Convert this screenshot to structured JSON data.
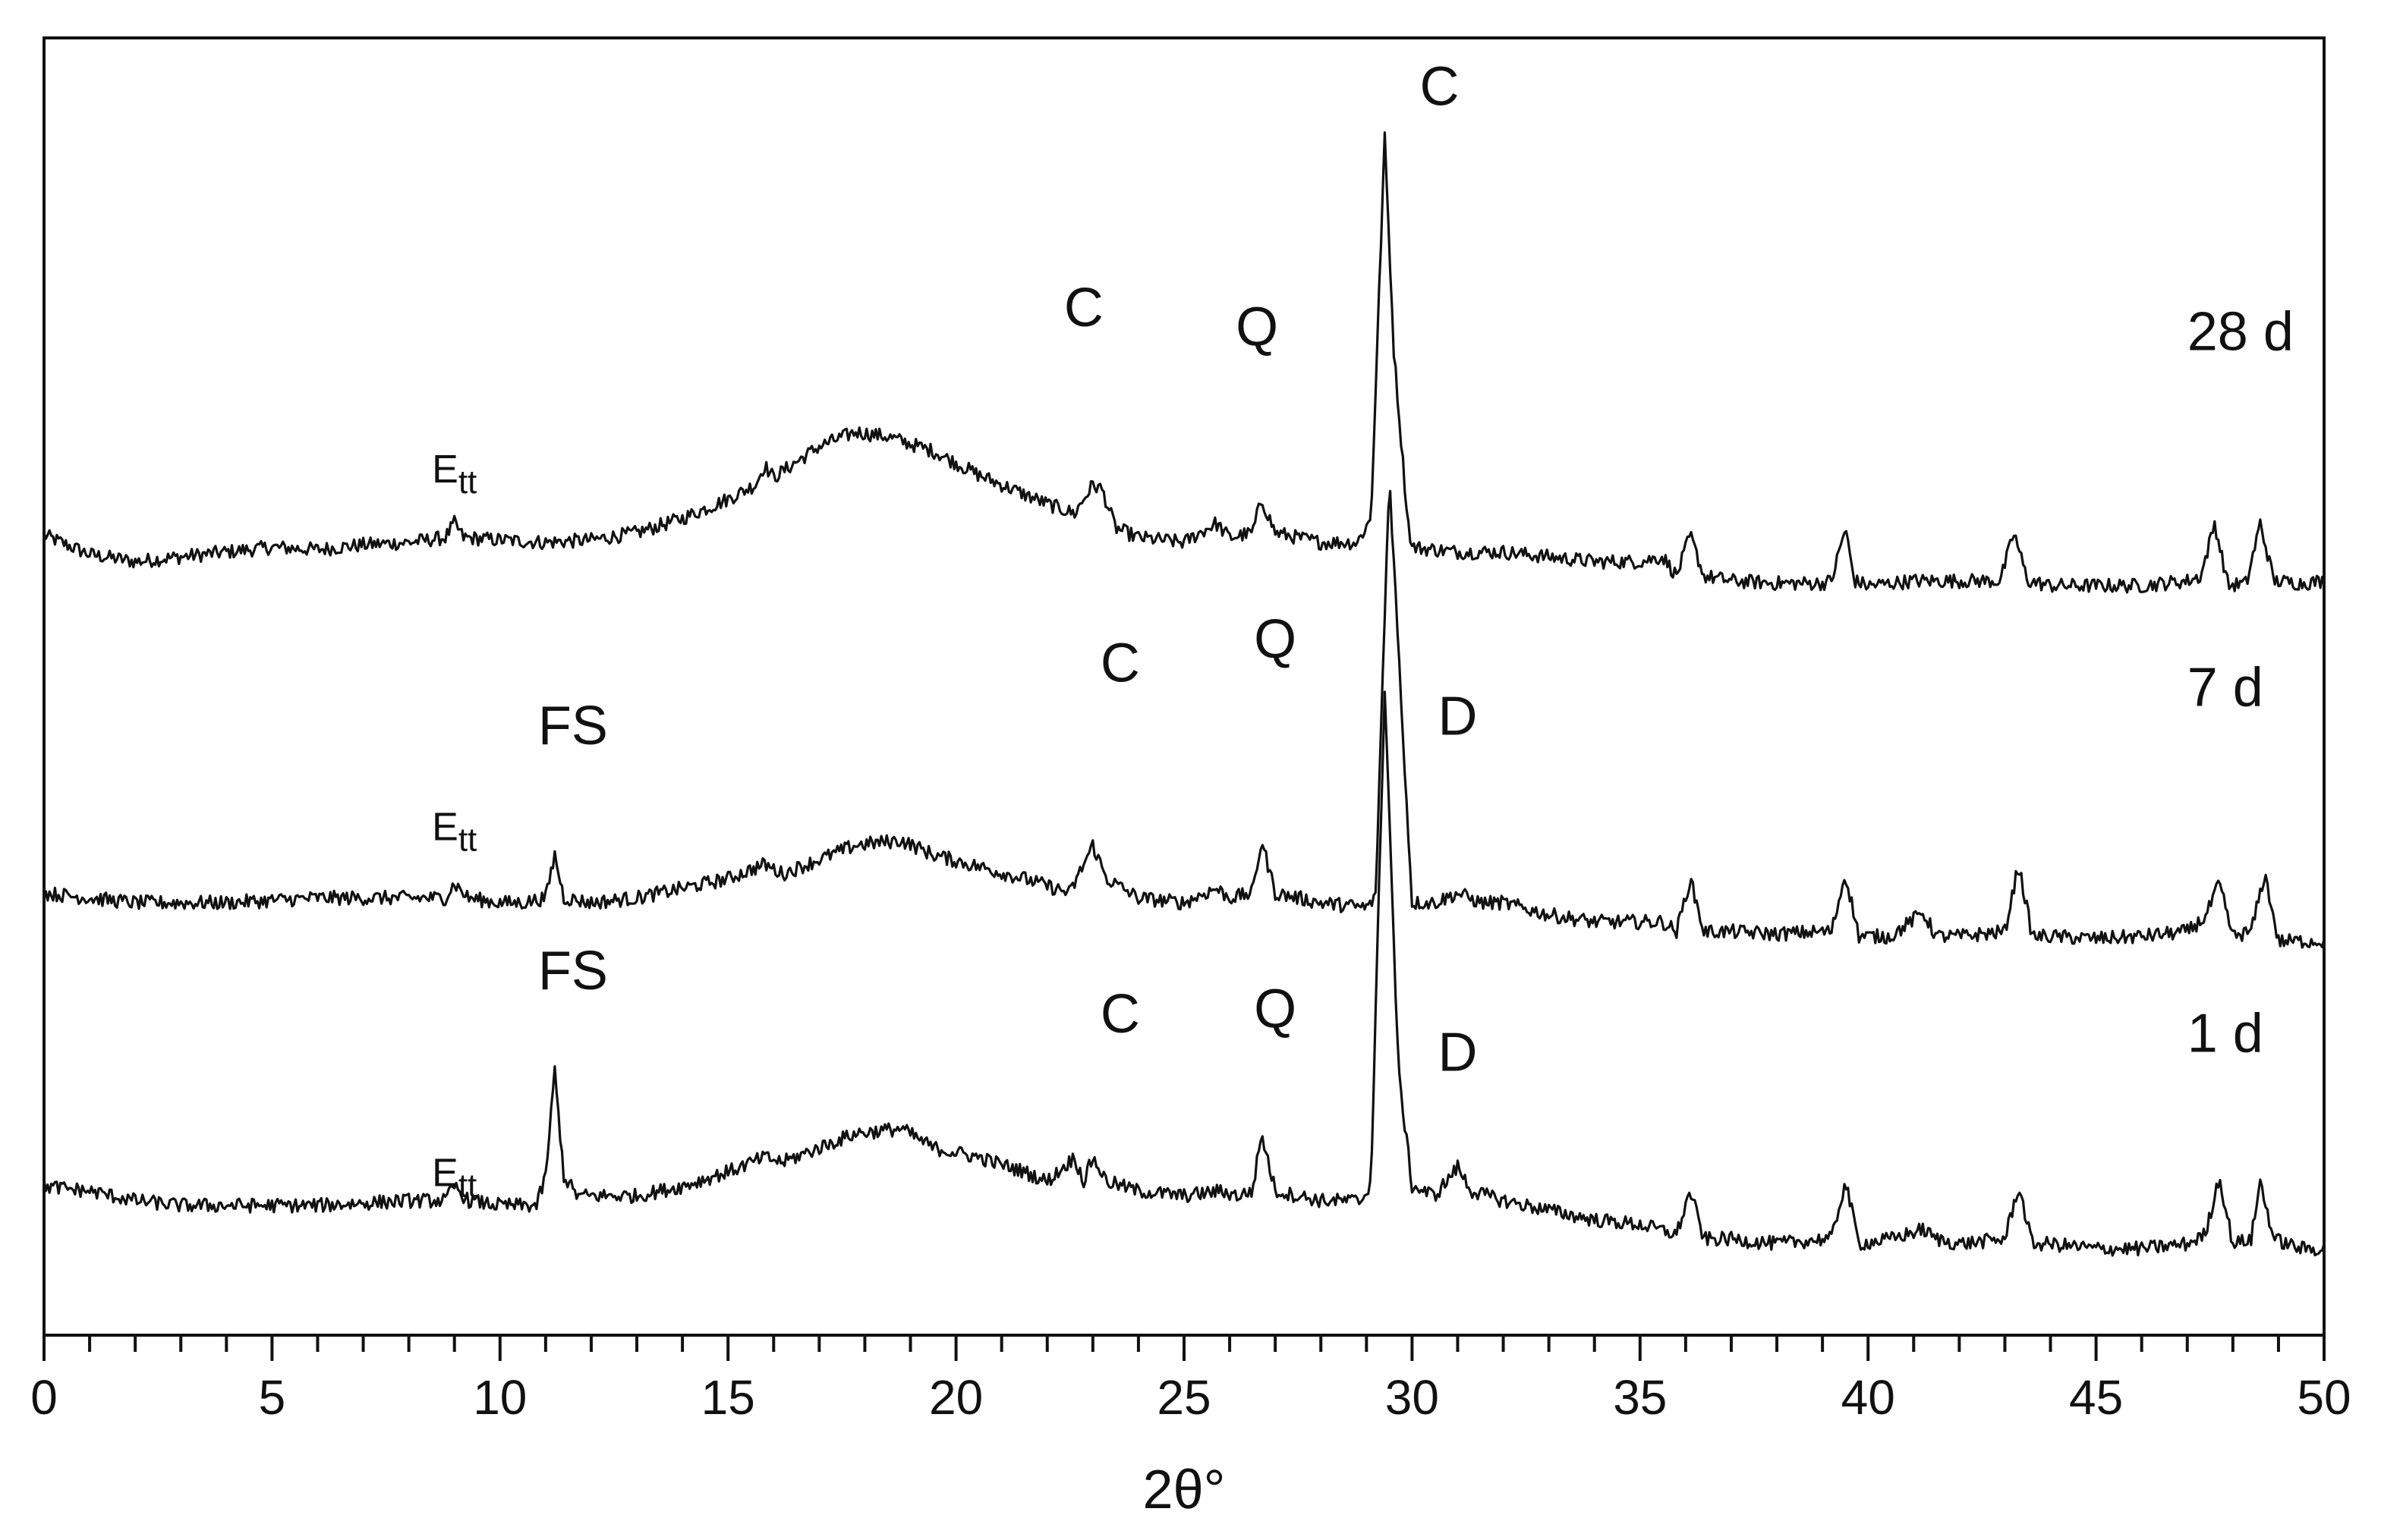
{
  "chart_data": {
    "type": "line",
    "title": "",
    "xlabel": "2θ°",
    "ylabel": "",
    "xlim": [
      0,
      50
    ],
    "x_major_ticks": [
      0,
      5,
      10,
      15,
      20,
      25,
      30,
      35,
      40,
      45,
      50
    ],
    "x_minor_step": 1,
    "y_axis_ticks": "none",
    "grid": false,
    "legend": "none",
    "line_color": "#111111",
    "series": [
      {
        "name": "28 d",
        "offset": 2.6,
        "points": [
          [
            0,
            0.23
          ],
          [
            1,
            0.15
          ],
          [
            2,
            0.12
          ],
          [
            3,
            0.14
          ],
          [
            4,
            0.16
          ],
          [
            5,
            0.18
          ],
          [
            6,
            0.17
          ],
          [
            7,
            0.19
          ],
          [
            8,
            0.2
          ],
          [
            8.8,
            0.22
          ],
          [
            9,
            0.28
          ],
          [
            9.2,
            0.22
          ],
          [
            10,
            0.21
          ],
          [
            11,
            0.2
          ],
          [
            12,
            0.21
          ],
          [
            13,
            0.24
          ],
          [
            14,
            0.3
          ],
          [
            15,
            0.38
          ],
          [
            15.6,
            0.44
          ],
          [
            15.8,
            0.52
          ],
          [
            16,
            0.47
          ],
          [
            17,
            0.6
          ],
          [
            17.8,
            0.66
          ],
          [
            18.5,
            0.64
          ],
          [
            19.5,
            0.58
          ],
          [
            20.5,
            0.48
          ],
          [
            21,
            0.44
          ],
          [
            22,
            0.36
          ],
          [
            22.6,
            0.32
          ],
          [
            23,
            0.44
          ],
          [
            23.2,
            0.42
          ],
          [
            23.5,
            0.26
          ],
          [
            24,
            0.22
          ],
          [
            25,
            0.2
          ],
          [
            25.7,
            0.28
          ],
          [
            26,
            0.22
          ],
          [
            26.5,
            0.24
          ],
          [
            26.7,
            0.38
          ],
          [
            27,
            0.24
          ],
          [
            28,
            0.2
          ],
          [
            28.8,
            0.2
          ],
          [
            29.1,
            0.3
          ],
          [
            29.4,
            1.88
          ],
          [
            29.6,
            1.0
          ],
          [
            29.9,
            0.3
          ],
          [
            30,
            0.18
          ],
          [
            31,
            0.16
          ],
          [
            32,
            0.16
          ],
          [
            33,
            0.14
          ],
          [
            34,
            0.12
          ],
          [
            35,
            0.12
          ],
          [
            35.5,
            0.14
          ],
          [
            35.8,
            0.06
          ],
          [
            36.1,
            0.23
          ],
          [
            36.4,
            0.06
          ],
          [
            37,
            0.04
          ],
          [
            38,
            0.03
          ],
          [
            39,
            0.03
          ],
          [
            39.2,
            0.04
          ],
          [
            39.5,
            0.26
          ],
          [
            39.7,
            0.04
          ],
          [
            40,
            0.02
          ],
          [
            41,
            0.04
          ],
          [
            42,
            0.04
          ],
          [
            42.9,
            0.04
          ],
          [
            43.2,
            0.24
          ],
          [
            43.5,
            0.04
          ],
          [
            44,
            0.02
          ],
          [
            45,
            0.02
          ],
          [
            46,
            0.02
          ],
          [
            47,
            0.04
          ],
          [
            47.3,
            0.06
          ],
          [
            47.6,
            0.28
          ],
          [
            47.9,
            0.02
          ],
          [
            48.3,
            0.03
          ],
          [
            48.6,
            0.28
          ],
          [
            48.9,
            0.04
          ],
          [
            49.5,
            0.03
          ],
          [
            50,
            0.04
          ]
        ]
      },
      {
        "name": "7 d",
        "offset": 1.2,
        "points": [
          [
            0,
            0.14
          ],
          [
            1,
            0.12
          ],
          [
            2,
            0.1
          ],
          [
            3,
            0.1
          ],
          [
            4,
            0.1
          ],
          [
            5,
            0.11
          ],
          [
            6,
            0.12
          ],
          [
            7,
            0.12
          ],
          [
            8,
            0.12
          ],
          [
            8.8,
            0.12
          ],
          [
            9,
            0.18
          ],
          [
            9.3,
            0.12
          ],
          [
            10,
            0.1
          ],
          [
            10.5,
            0.1
          ],
          [
            11,
            0.12
          ],
          [
            11.2,
            0.3
          ],
          [
            11.4,
            0.12
          ],
          [
            12,
            0.1
          ],
          [
            13,
            0.12
          ],
          [
            14,
            0.16
          ],
          [
            15,
            0.2
          ],
          [
            15.8,
            0.26
          ],
          [
            16.2,
            0.22
          ],
          [
            17,
            0.28
          ],
          [
            17.8,
            0.34
          ],
          [
            18.8,
            0.36
          ],
          [
            19.5,
            0.3
          ],
          [
            20.5,
            0.25
          ],
          [
            21.5,
            0.2
          ],
          [
            22.5,
            0.14
          ],
          [
            23,
            0.34
          ],
          [
            23.3,
            0.2
          ],
          [
            24,
            0.12
          ],
          [
            25,
            0.1
          ],
          [
            25.7,
            0.16
          ],
          [
            26,
            0.12
          ],
          [
            26.5,
            0.14
          ],
          [
            26.7,
            0.36
          ],
          [
            27,
            0.14
          ],
          [
            28,
            0.1
          ],
          [
            29,
            0.08
          ],
          [
            29.2,
            0.12
          ],
          [
            29.5,
            1.88
          ],
          [
            29.8,
            0.8
          ],
          [
            30,
            0.1
          ],
          [
            30.5,
            0.1
          ],
          [
            31,
            0.14
          ],
          [
            31.5,
            0.1
          ],
          [
            32,
            0.1
          ],
          [
            33,
            0.05
          ],
          [
            34,
            0.02
          ],
          [
            35,
            0.02
          ],
          [
            35.5,
            0.02
          ],
          [
            35.8,
            -0.02
          ],
          [
            36.1,
            0.2
          ],
          [
            36.4,
            -0.02
          ],
          [
            37,
            -0.02
          ],
          [
            38,
            -0.03
          ],
          [
            39,
            -0.02
          ],
          [
            39.2,
            -0.02
          ],
          [
            39.5,
            0.22
          ],
          [
            39.8,
            -0.04
          ],
          [
            40.5,
            -0.04
          ],
          [
            41.2,
            0.06
          ],
          [
            41.5,
            -0.04
          ],
          [
            42,
            -0.04
          ],
          [
            43,
            -0.02
          ],
          [
            43.3,
            0.26
          ],
          [
            43.6,
            -0.04
          ],
          [
            44,
            -0.04
          ],
          [
            45,
            -0.05
          ],
          [
            46,
            -0.04
          ],
          [
            47,
            -0.02
          ],
          [
            47.4,
            0.04
          ],
          [
            47.7,
            0.18
          ],
          [
            48,
            -0.04
          ],
          [
            48.4,
            -0.02
          ],
          [
            48.7,
            0.22
          ],
          [
            49,
            -0.06
          ],
          [
            49.5,
            -0.06
          ],
          [
            50,
            -0.06
          ]
        ]
      },
      {
        "name": "1 d",
        "offset": 0.0,
        "points": [
          [
            0,
            0.12
          ],
          [
            1,
            0.1
          ],
          [
            2,
            0.06
          ],
          [
            3,
            0.04
          ],
          [
            4,
            0.04
          ],
          [
            5,
            0.04
          ],
          [
            6,
            0.04
          ],
          [
            7,
            0.05
          ],
          [
            8,
            0.06
          ],
          [
            8.8,
            0.06
          ],
          [
            9,
            0.12
          ],
          [
            9.3,
            0.06
          ],
          [
            10,
            0.04
          ],
          [
            10.8,
            0.04
          ],
          [
            11,
            0.16
          ],
          [
            11.2,
            0.6
          ],
          [
            11.4,
            0.16
          ],
          [
            11.7,
            0.08
          ],
          [
            12,
            0.08
          ],
          [
            13,
            0.08
          ],
          [
            14,
            0.12
          ],
          [
            15,
            0.18
          ],
          [
            15.8,
            0.24
          ],
          [
            16.2,
            0.22
          ],
          [
            17,
            0.28
          ],
          [
            17.8,
            0.34
          ],
          [
            18.8,
            0.36
          ],
          [
            19.5,
            0.28
          ],
          [
            20.5,
            0.24
          ],
          [
            21.5,
            0.18
          ],
          [
            22,
            0.14
          ],
          [
            22.6,
            0.24
          ],
          [
            22.8,
            0.14
          ],
          [
            23,
            0.24
          ],
          [
            23.3,
            0.14
          ],
          [
            24,
            0.1
          ],
          [
            25,
            0.08
          ],
          [
            25.8,
            0.1
          ],
          [
            26.2,
            0.08
          ],
          [
            26.5,
            0.1
          ],
          [
            26.7,
            0.34
          ],
          [
            27,
            0.1
          ],
          [
            28,
            0.06
          ],
          [
            28.9,
            0.06
          ],
          [
            29.1,
            0.14
          ],
          [
            29.4,
            2.2
          ],
          [
            29.7,
            0.6
          ],
          [
            30,
            0.12
          ],
          [
            30.5,
            0.08
          ],
          [
            31,
            0.2
          ],
          [
            31.3,
            0.1
          ],
          [
            32,
            0.06
          ],
          [
            33,
            0.02
          ],
          [
            34,
            -0.02
          ],
          [
            35,
            -0.04
          ],
          [
            35.8,
            -0.08
          ],
          [
            36.1,
            0.1
          ],
          [
            36.4,
            -0.1
          ],
          [
            37,
            -0.1
          ],
          [
            38,
            -0.12
          ],
          [
            39,
            -0.1
          ],
          [
            39.2,
            -0.1
          ],
          [
            39.5,
            0.14
          ],
          [
            39.8,
            -0.12
          ],
          [
            40.5,
            -0.1
          ],
          [
            41.2,
            -0.06
          ],
          [
            41.5,
            -0.1
          ],
          [
            42,
            -0.12
          ],
          [
            43,
            -0.1
          ],
          [
            43.3,
            0.12
          ],
          [
            43.6,
            -0.12
          ],
          [
            44,
            -0.12
          ],
          [
            45,
            -0.14
          ],
          [
            46,
            -0.14
          ],
          [
            47,
            -0.12
          ],
          [
            47.4,
            -0.08
          ],
          [
            47.7,
            0.16
          ],
          [
            48,
            -0.12
          ],
          [
            48.4,
            -0.1
          ],
          [
            48.6,
            0.14
          ],
          [
            48.9,
            -0.1
          ],
          [
            49.5,
            -0.14
          ],
          [
            50,
            -0.14
          ]
        ]
      }
    ],
    "series_labels": [
      {
        "text": "28 d",
        "x": 47.0,
        "y": 3.6
      },
      {
        "text": "7 d",
        "x": 47.0,
        "y": 2.12
      },
      {
        "text": "1 d",
        "x": 47.0,
        "y": 0.68
      }
    ],
    "annotations": [
      {
        "text": "C",
        "x": 30.6,
        "y": 4.62,
        "size": "large"
      },
      {
        "text": "C",
        "x": 22.8,
        "y": 3.7,
        "size": "large"
      },
      {
        "text": "Q",
        "x": 26.6,
        "y": 3.62,
        "size": "large"
      },
      {
        "text": "E",
        "sub": "tt",
        "x": 9.0,
        "y": 3.05,
        "size": "small"
      },
      {
        "text": "FS",
        "x": 11.6,
        "y": 1.96,
        "size": "large"
      },
      {
        "text": "C",
        "x": 23.6,
        "y": 2.22,
        "size": "large"
      },
      {
        "text": "Q",
        "x": 27.0,
        "y": 2.32,
        "size": "large"
      },
      {
        "text": "D",
        "x": 31.0,
        "y": 2.0,
        "size": "large"
      },
      {
        "text": "E",
        "sub": "tt",
        "x": 9.0,
        "y": 1.56,
        "size": "small"
      },
      {
        "text": "FS",
        "x": 11.6,
        "y": 0.94,
        "size": "large"
      },
      {
        "text": "C",
        "x": 23.6,
        "y": 0.76,
        "size": "large"
      },
      {
        "text": "Q",
        "x": 27.0,
        "y": 0.78,
        "size": "large"
      },
      {
        "text": "D",
        "x": 31.0,
        "y": 0.6,
        "size": "large"
      },
      {
        "text": "E",
        "sub": "tt",
        "x": 9.0,
        "y": 0.12,
        "size": "small"
      }
    ]
  }
}
